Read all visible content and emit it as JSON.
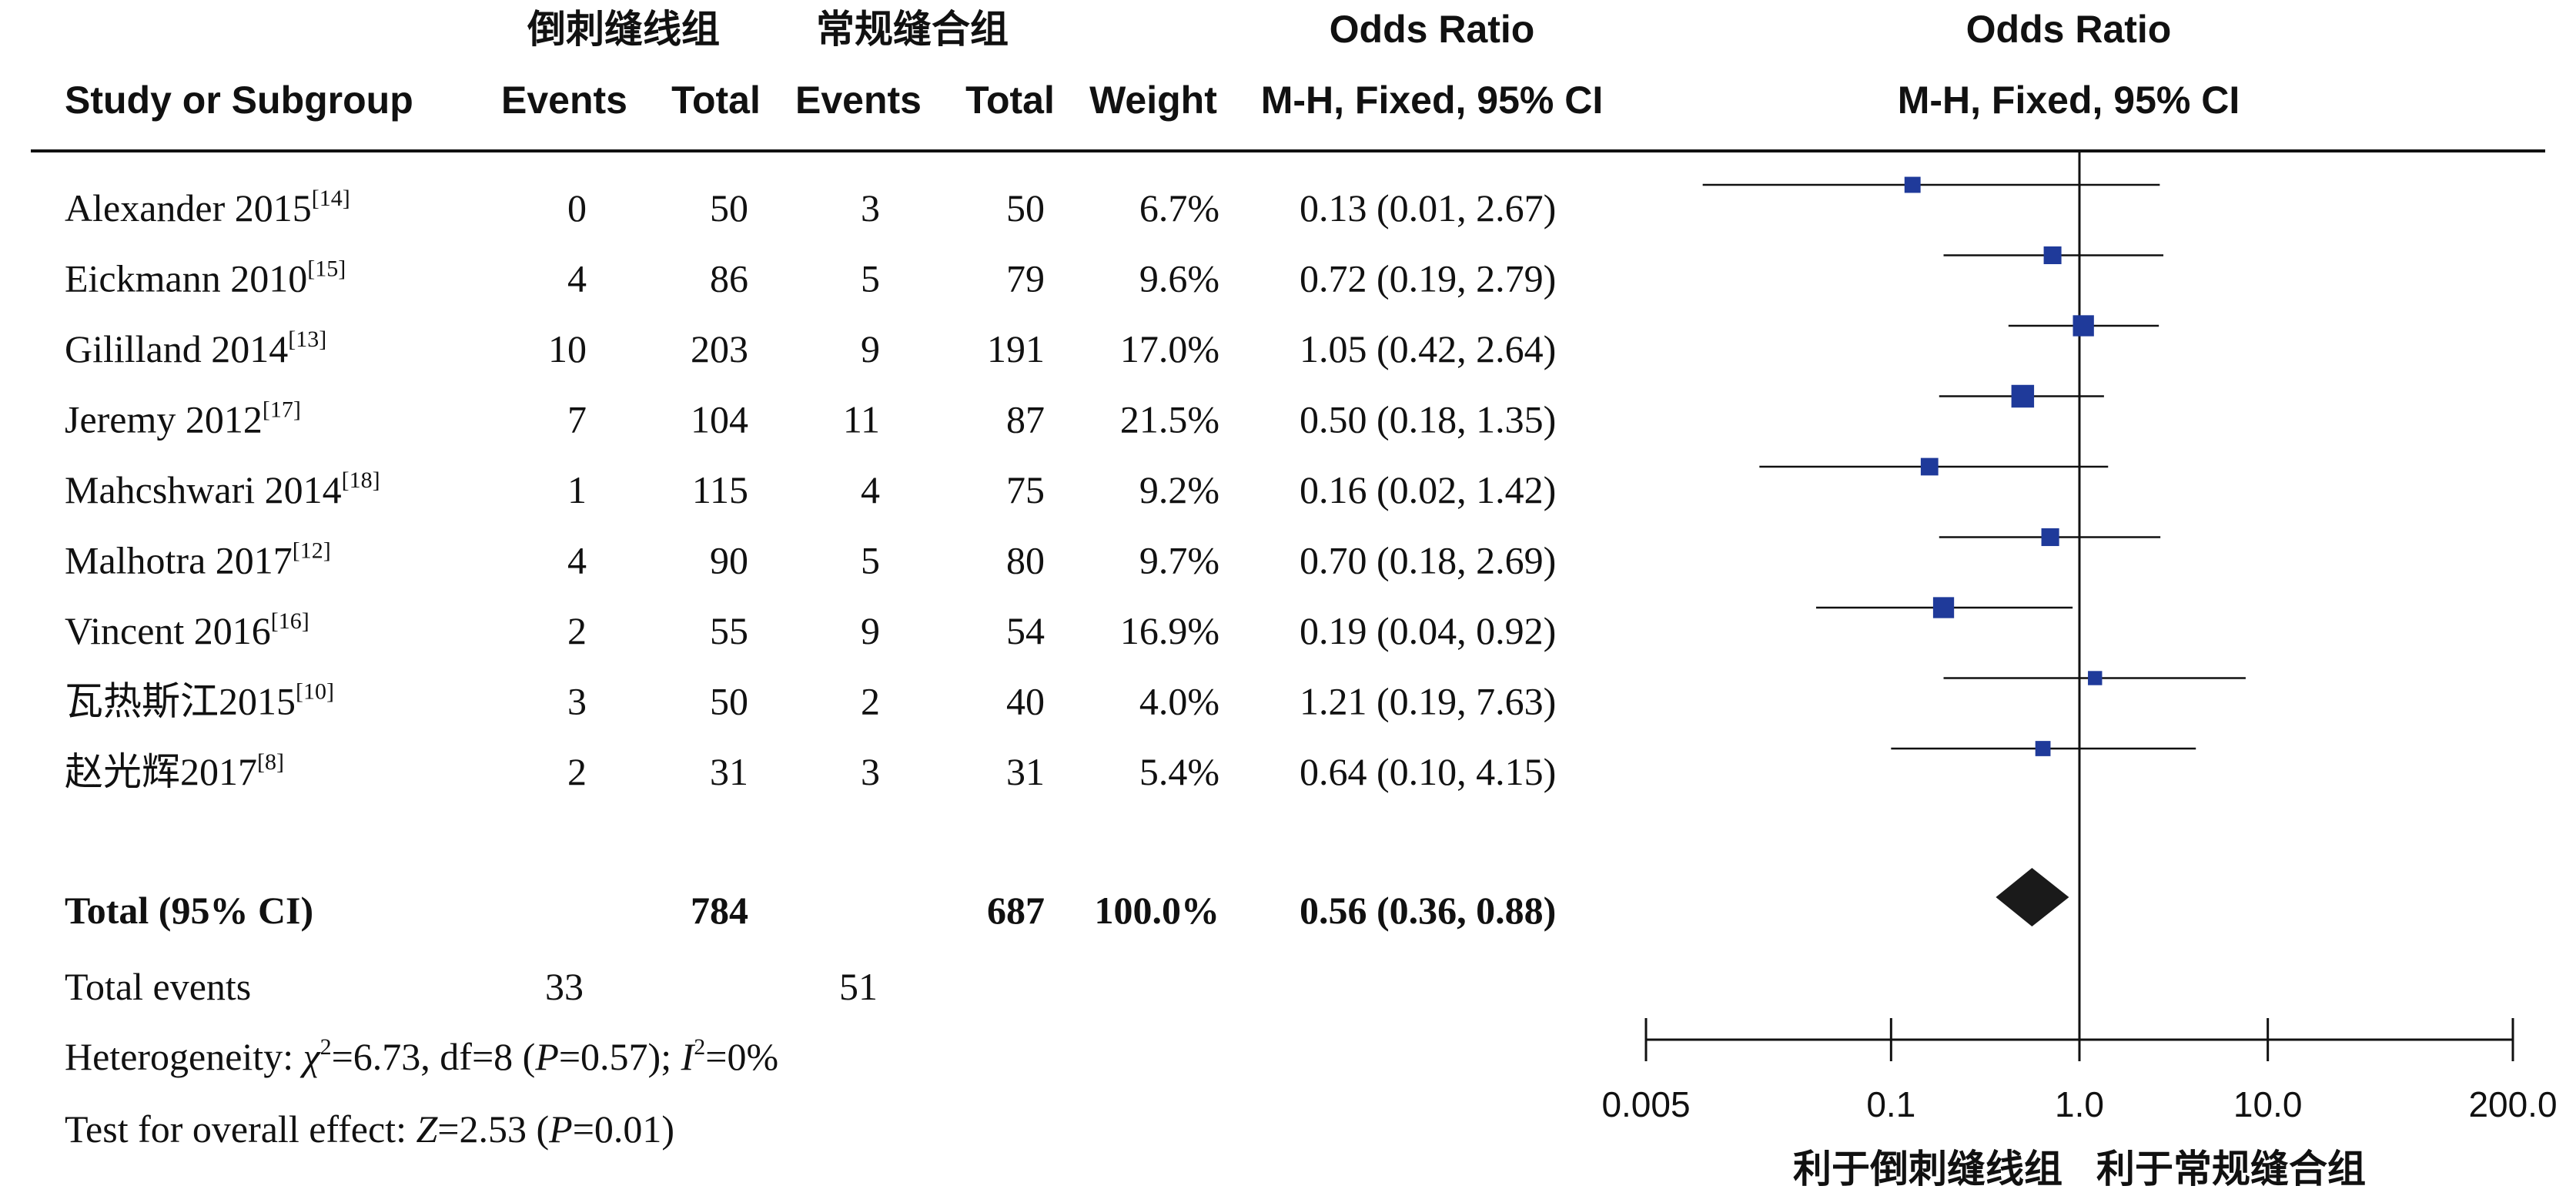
{
  "header": {
    "group1_name": "倒刺缝线组",
    "group2_name": "常规缝合组",
    "study_col": "Study or Subgroup",
    "events_label": "Events",
    "total_label": "Total",
    "weight_label": "Weight",
    "or_title": "Odds Ratio",
    "or_method": "M-H, Fixed, 95% CI",
    "plot_title": "Odds Ratio",
    "plot_method": "M-H, Fixed, 95% CI"
  },
  "studies": [
    {
      "name": "Alexander 2015",
      "ref": "[14]",
      "e1": "0",
      "t1": "50",
      "e2": "3",
      "t2": "50",
      "weight": "6.7%",
      "ci_text": "0.13 (0.01, 2.67)"
    },
    {
      "name": "Eickmann 2010",
      "ref": "[15]",
      "e1": "4",
      "t1": "86",
      "e2": "5",
      "t2": "79",
      "weight": "9.6%",
      "ci_text": "0.72 (0.19, 2.79)"
    },
    {
      "name": "Gililland 2014",
      "ref": "[13]",
      "e1": "10",
      "t1": "203",
      "e2": "9",
      "t2": "191",
      "weight": "17.0%",
      "ci_text": "1.05 (0.42, 2.64)"
    },
    {
      "name": "Jeremy 2012",
      "ref": "[17]",
      "e1": "7",
      "t1": "104",
      "e2": "11",
      "t2": "87",
      "weight": "21.5%",
      "ci_text": "0.50 (0.18, 1.35)"
    },
    {
      "name": "Mahcshwari 2014",
      "ref": "[18]",
      "e1": "1",
      "t1": "115",
      "e2": "4",
      "t2": "75",
      "weight": "9.2%",
      "ci_text": "0.16 (0.02, 1.42)"
    },
    {
      "name": "Malhotra 2017",
      "ref": "[12]",
      "e1": "4",
      "t1": "90",
      "e2": "5",
      "t2": "80",
      "weight": "9.7%",
      "ci_text": "0.70 (0.18, 2.69)"
    },
    {
      "name": "Vincent 2016",
      "ref": "[16]",
      "e1": "2",
      "t1": "55",
      "e2": "9",
      "t2": "54",
      "weight": "16.9%",
      "ci_text": "0.19 (0.04, 0.92)"
    },
    {
      "name": "瓦热斯江2015",
      "ref": "[10]",
      "e1": "3",
      "t1": "50",
      "e2": "2",
      "t2": "40",
      "weight": "4.0%",
      "ci_text": "1.21 (0.19, 7.63)"
    },
    {
      "name": "赵光辉2017",
      "ref": "[8]",
      "e1": "2",
      "t1": "31",
      "e2": "3",
      "t2": "31",
      "weight": "5.4%",
      "ci_text": "0.64 (0.10, 4.15)"
    }
  ],
  "total": {
    "label": "Total (95% CI)",
    "t1": "784",
    "t2": "687",
    "weight": "100.0%",
    "ci_text": "0.56 (0.36, 0.88)"
  },
  "total_events": {
    "label": "Total events",
    "e1": "33",
    "e2": "51"
  },
  "heterogeneity": {
    "prefix": "Heterogeneity: ",
    "chi_sym": "χ",
    "chi_sup": "2",
    "stats": "=6.73, df=8 (",
    "p_sym": "P",
    "p_val": "=0.57); ",
    "i_sym": "I",
    "i_sup": "2",
    "i_val": "=0%"
  },
  "overall": {
    "prefix": "Test for overall effect: ",
    "z_sym": "Z",
    "z_val": "=2.53 (",
    "p_sym": "P",
    "p_val": "=0.01)"
  },
  "chart_data": {
    "type": "scatter",
    "subtype": "forest-plot",
    "x_scale": "log",
    "xlim": [
      0.005,
      200
    ],
    "x_ticks": [
      0.005,
      0.1,
      1,
      10,
      200
    ],
    "x_tick_labels": [
      "0.005",
      "0.1",
      "1.0",
      "10.0",
      "200.0"
    ],
    "reference_line": 1,
    "favours_left": "利于倒刺缝线组",
    "favours_right": "利于常规缝合组",
    "marker_color": "#1f3a9a",
    "diamond_color": "#1a1a1a",
    "points": [
      {
        "or": 0.13,
        "lo": 0.01,
        "hi": 2.67,
        "weight": 6.7
      },
      {
        "or": 0.72,
        "lo": 0.19,
        "hi": 2.79,
        "weight": 9.6
      },
      {
        "or": 1.05,
        "lo": 0.42,
        "hi": 2.64,
        "weight": 17.0
      },
      {
        "or": 0.5,
        "lo": 0.18,
        "hi": 1.35,
        "weight": 21.5
      },
      {
        "or": 0.16,
        "lo": 0.02,
        "hi": 1.42,
        "weight": 9.2
      },
      {
        "or": 0.7,
        "lo": 0.18,
        "hi": 2.69,
        "weight": 9.7
      },
      {
        "or": 0.19,
        "lo": 0.04,
        "hi": 0.92,
        "weight": 16.9
      },
      {
        "or": 1.21,
        "lo": 0.19,
        "hi": 7.63,
        "weight": 4.0
      },
      {
        "or": 0.64,
        "lo": 0.1,
        "hi": 4.15,
        "weight": 5.4
      }
    ],
    "pooled": {
      "or": 0.56,
      "lo": 0.36,
      "hi": 0.88
    }
  }
}
